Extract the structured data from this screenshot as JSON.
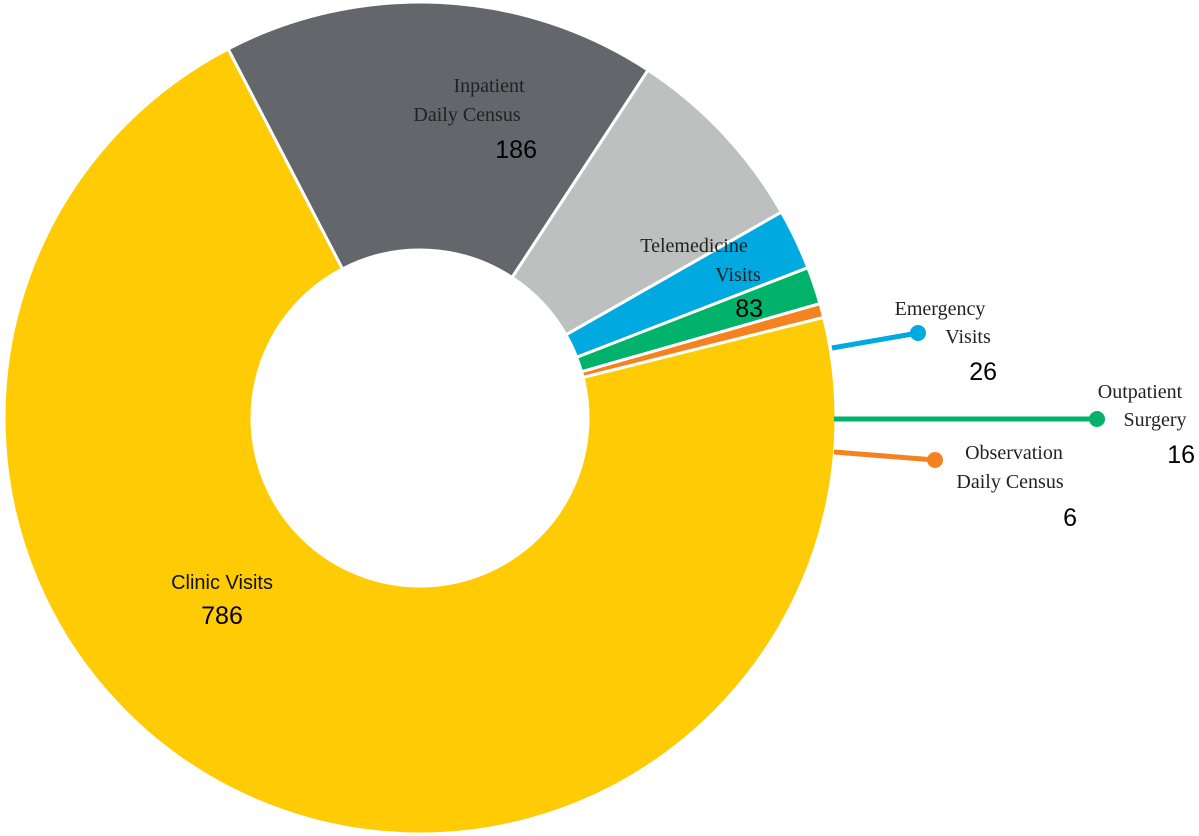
{
  "chart_data": {
    "type": "pie",
    "title": "",
    "series": [
      {
        "name": "Clinic Visits",
        "label_lines": [
          "Clinic Visits"
        ],
        "value": 786,
        "color": "#FFCB05"
      },
      {
        "name": "Inpatient Daily Census",
        "label_lines": [
          "Inpatient",
          "Daily Census"
        ],
        "value": 186,
        "color": "#63666A"
      },
      {
        "name": "Telemedicine Visits",
        "label_lines": [
          "Telemedicine",
          "Visits"
        ],
        "value": 83,
        "color": "#BEBFBF"
      },
      {
        "name": "Emergency Visits",
        "label_lines": [
          "Emergency",
          "Visits"
        ],
        "value": 26,
        "color": "#00A9E0"
      },
      {
        "name": "Outpatient Surgery",
        "label_lines": [
          "Outpatient",
          "Surgery"
        ],
        "value": 16,
        "color": "#00B26A"
      },
      {
        "name": "Observation Daily Census",
        "label_lines": [
          "Observation",
          "Daily Census"
        ],
        "value": 6,
        "color": "#F58220"
      }
    ],
    "legend": "none"
  }
}
